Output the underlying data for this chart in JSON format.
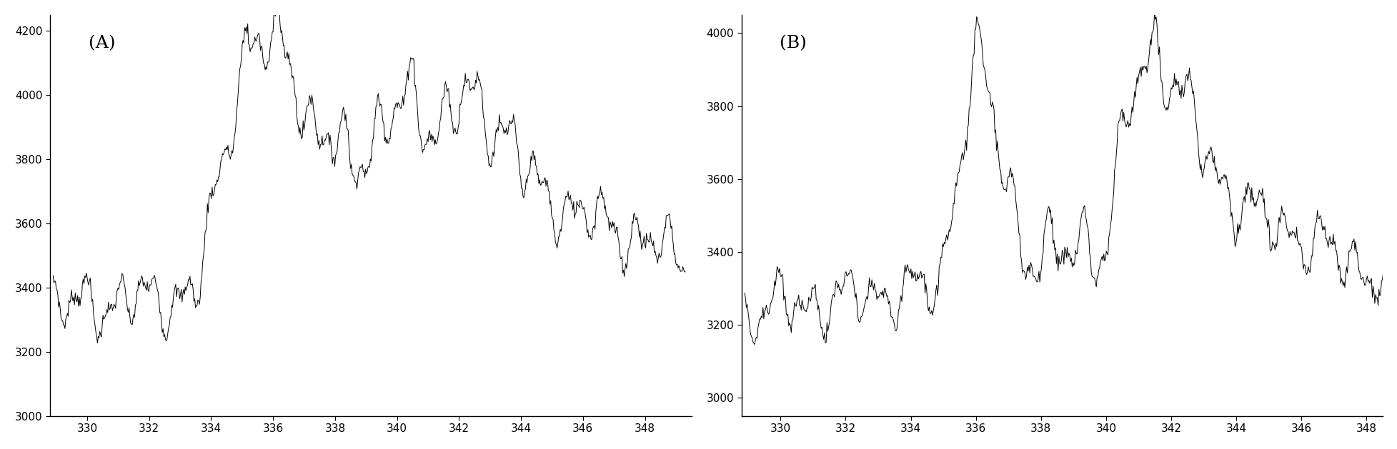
{
  "title_A": "(A)",
  "title_B": "(B)",
  "xlim_A": [
    328.8,
    349.5
  ],
  "xlim_B": [
    328.8,
    348.5
  ],
  "ylim_A": [
    3000,
    4250
  ],
  "ylim_B": [
    2950,
    4050
  ],
  "xticks_A": [
    330,
    332,
    334,
    336,
    338,
    340,
    342,
    344,
    346,
    348
  ],
  "xticks_B": [
    330,
    332,
    334,
    336,
    338,
    340,
    342,
    344,
    346,
    348
  ],
  "yticks_A": [
    3000,
    3200,
    3400,
    3600,
    3800,
    4000,
    4200
  ],
  "yticks_B": [
    3000,
    3200,
    3400,
    3600,
    3800,
    4000
  ],
  "line_color": "#000000",
  "line_width": 0.7,
  "bg_color": "#ffffff",
  "label_fontsize": 11,
  "annotation_fontsize": 18
}
